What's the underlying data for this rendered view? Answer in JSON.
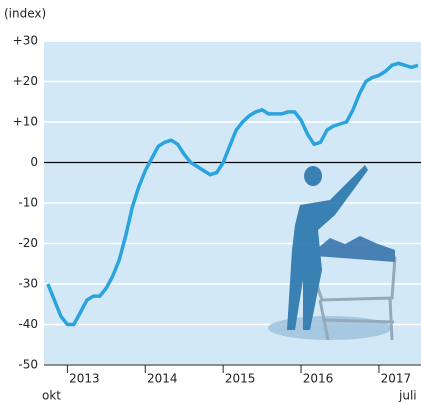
{
  "chart_data": {
    "type": "line",
    "y_axis_label": "(index)",
    "x_start_label": "okt",
    "x_end_label": "juli",
    "xlim": [
      2012.7,
      2017.54
    ],
    "xticks": [
      2013,
      2014,
      2015,
      2016,
      2017
    ],
    "ylim": [
      -50,
      30
    ],
    "yticks": [
      {
        "value": 30,
        "label": "+30"
      },
      {
        "value": 20,
        "label": "+20"
      },
      {
        "value": 10,
        "label": "+10"
      },
      0,
      -10,
      -20,
      -30,
      -40,
      -50
    ],
    "grid": true,
    "zero_line": true,
    "background": "#d3e8f6",
    "series": [
      {
        "color": "#2ba3df",
        "x": [
          2012.75,
          2012.833,
          2012.917,
          2013,
          2013.083,
          2013.167,
          2013.25,
          2013.333,
          2013.417,
          2013.5,
          2013.583,
          2013.667,
          2013.75,
          2013.833,
          2013.917,
          2014,
          2014.083,
          2014.167,
          2014.25,
          2014.333,
          2014.417,
          2014.5,
          2014.583,
          2014.667,
          2014.75,
          2014.833,
          2014.917,
          2015,
          2015.083,
          2015.167,
          2015.25,
          2015.333,
          2015.417,
          2015.5,
          2015.583,
          2015.667,
          2015.75,
          2015.833,
          2015.917,
          2016,
          2016.083,
          2016.167,
          2016.25,
          2016.333,
          2016.417,
          2016.5,
          2016.583,
          2016.667,
          2016.75,
          2016.833,
          2016.917,
          2017,
          2017.083,
          2017.167,
          2017.25,
          2017.333,
          2017.417,
          2017.5
        ],
        "values": [
          -30,
          -34,
          -38,
          -40,
          -40,
          -37,
          -34,
          -33,
          -33,
          -31,
          -28,
          -24,
          -18,
          -11,
          -6,
          -2,
          1,
          4,
          5,
          5.5,
          4.5,
          2,
          0,
          -1,
          -2,
          -3,
          -2.5,
          0,
          4,
          8,
          10,
          11.5,
          12.5,
          13,
          12,
          12,
          12,
          12.5,
          12.5,
          10.5,
          7,
          4.5,
          5,
          8,
          9,
          9.5,
          10,
          13,
          17,
          20,
          21,
          21.5,
          22.5,
          24,
          24.5,
          24,
          23.5,
          24
        ]
      }
    ]
  }
}
